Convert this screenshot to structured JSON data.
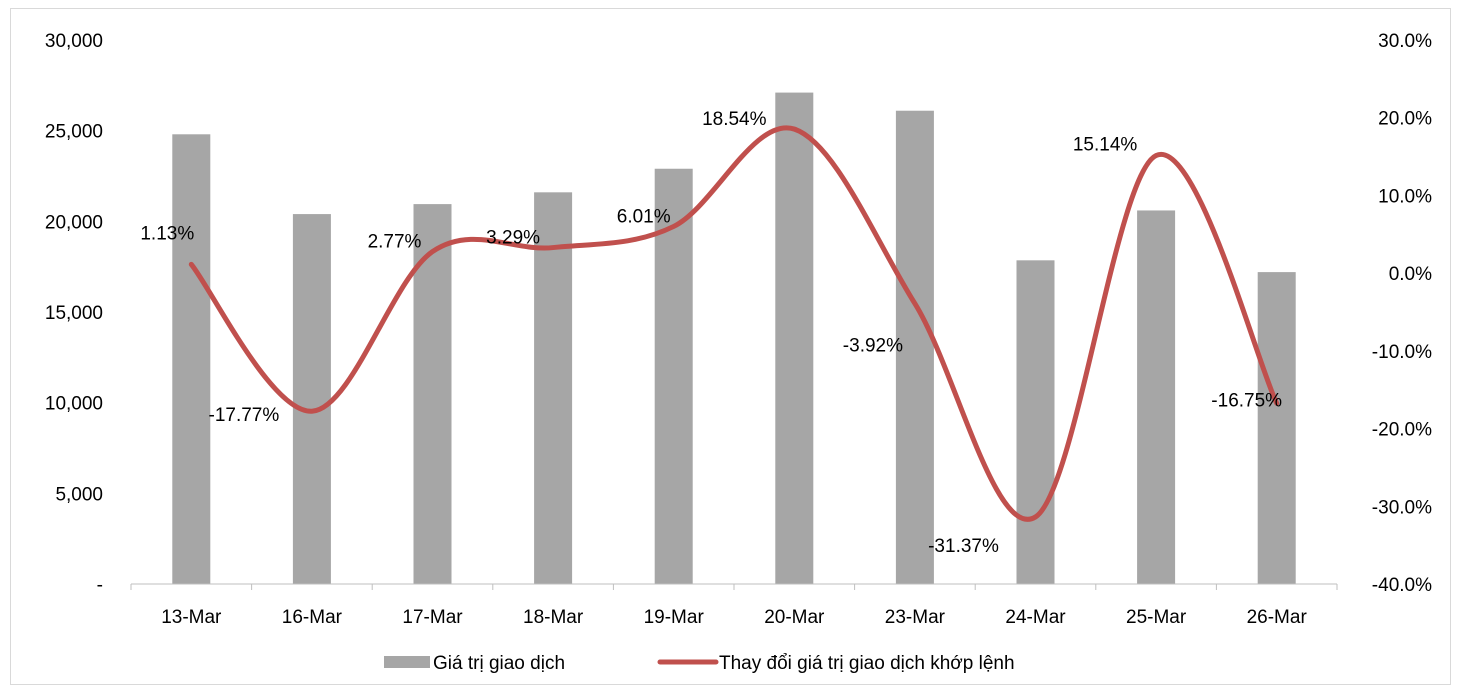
{
  "chart_data": {
    "type": "bar+line",
    "categories": [
      "13-Mar",
      "16-Mar",
      "17-Mar",
      "18-Mar",
      "19-Mar",
      "20-Mar",
      "23-Mar",
      "24-Mar",
      "25-Mar",
      "26-Mar"
    ],
    "series": [
      {
        "name": "Giá trị giao dịch",
        "type": "bar",
        "axis": "left",
        "color": "#a6a6a6",
        "values": [
          24800,
          20400,
          20950,
          21600,
          22900,
          27100,
          26100,
          17850,
          20600,
          17200
        ]
      },
      {
        "name": "Thay đổi giá trị giao dịch khớp lệnh",
        "type": "line",
        "axis": "right",
        "color": "#c0504d",
        "values": [
          1.13,
          -17.77,
          2.77,
          3.29,
          6.01,
          18.54,
          -3.92,
          -31.37,
          15.14,
          -16.75
        ],
        "data_labels": [
          "1.13%",
          "-17.77%",
          "2.77%",
          "3.29%",
          "6.01%",
          "18.54%",
          "-3.92%",
          "-31.37%",
          "15.14%",
          "-16.75%"
        ]
      }
    ],
    "left_axis": {
      "ylim": [
        0,
        30000
      ],
      "ticks": [
        0,
        5000,
        10000,
        15000,
        20000,
        25000,
        30000
      ],
      "tick_labels": [
        "-",
        "5,000",
        "10,000",
        "15,000",
        "20,000",
        "25,000",
        "30,000"
      ]
    },
    "right_axis": {
      "ylim": [
        -40,
        30
      ],
      "ticks": [
        -40,
        -30,
        -20,
        -10,
        0,
        10,
        20,
        30
      ],
      "tick_labels": [
        "-40.0%",
        "-30.0%",
        "-20.0%",
        "-10.0%",
        "0.0%",
        "10.0%",
        "20.0%",
        "30.0%"
      ]
    },
    "title": "",
    "xlabel": "",
    "ylabel": "",
    "grid": false,
    "legend_position": "bottom"
  }
}
